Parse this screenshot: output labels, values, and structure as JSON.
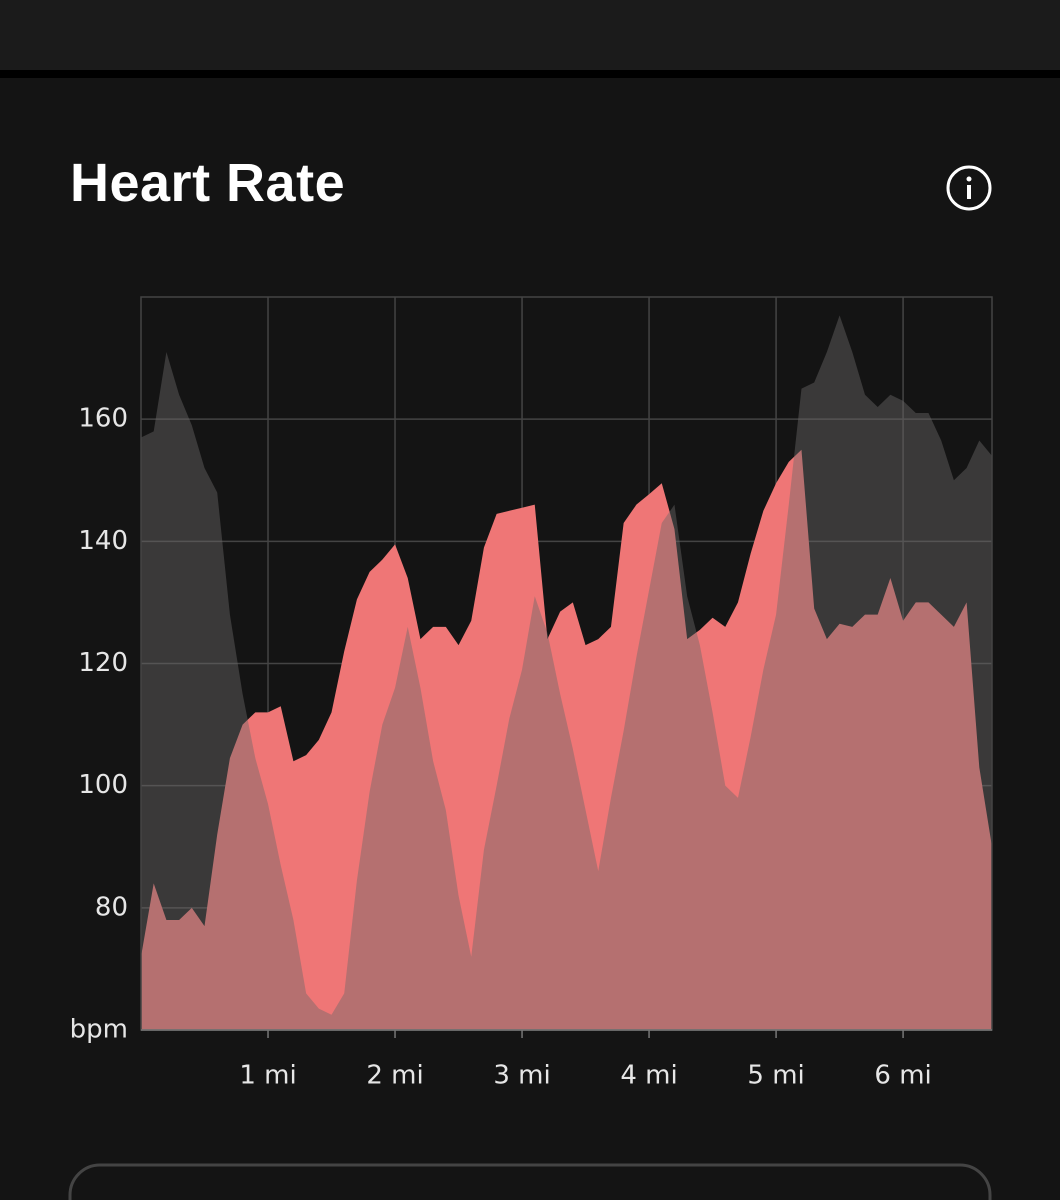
{
  "header": {
    "title": "Heart Rate"
  },
  "chart_data": {
    "type": "area",
    "x": [
      0,
      0.1,
      0.2,
      0.3,
      0.4,
      0.5,
      0.6,
      0.7,
      0.8,
      0.9,
      1.0,
      1.1,
      1.2,
      1.3,
      1.4,
      1.5,
      1.6,
      1.7,
      1.8,
      1.9,
      2.0,
      2.1,
      2.2,
      2.3,
      2.4,
      2.5,
      2.6,
      2.7,
      2.8,
      2.9,
      3.0,
      3.1,
      3.2,
      3.3,
      3.4,
      3.5,
      3.6,
      3.7,
      3.8,
      3.9,
      4.0,
      4.1,
      4.2,
      4.3,
      4.4,
      4.5,
      4.6,
      4.7,
      4.8,
      4.9,
      5.0,
      5.1,
      5.2,
      5.3,
      5.4,
      5.5,
      5.6,
      5.7,
      5.8,
      5.9,
      6.0,
      6.1,
      6.2,
      6.3,
      6.4,
      6.5,
      6.6,
      6.7
    ],
    "series": [
      {
        "color": "#ef7676",
        "values": [
          72,
          84,
          78,
          78,
          80,
          77,
          92,
          104.5,
          110,
          112,
          112,
          113,
          104,
          105,
          107.5,
          112,
          122,
          130.5,
          135,
          137,
          139.5,
          134,
          124,
          126,
          126,
          123,
          127,
          139,
          144.5,
          145,
          145.5,
          146,
          124,
          128.5,
          130,
          123,
          124,
          126,
          143,
          146,
          147.7,
          149.5,
          142,
          124,
          125.5,
          127.5,
          126,
          130,
          138,
          145,
          149.5,
          153,
          155,
          129,
          124,
          126.5,
          126,
          128,
          128,
          134,
          127,
          130,
          130,
          128,
          126,
          130,
          103,
          90
        ]
      },
      {
        "color": "#6b6868",
        "values": [
          157,
          158,
          171,
          164,
          159,
          152,
          148,
          128,
          115,
          104.5,
          97,
          87,
          78,
          66,
          63.5,
          62.5,
          66,
          84.5,
          99,
          110,
          116,
          126,
          116,
          104,
          96,
          82,
          72,
          89.5,
          100,
          111,
          119,
          131,
          125,
          115,
          106,
          96,
          86,
          98,
          109,
          121,
          132,
          143,
          146,
          131,
          123,
          112,
          100,
          98,
          108,
          119,
          128,
          146,
          165,
          166,
          171,
          177,
          171,
          164,
          162,
          164,
          163,
          161,
          161,
          156.5,
          150,
          152,
          156.5,
          154
        ]
      }
    ],
    "xlim": [
      0,
      6.7
    ],
    "xticks": [
      {
        "value": 1,
        "label": "1 mi"
      },
      {
        "value": 2,
        "label": "2 mi"
      },
      {
        "value": 3,
        "label": "3 mi"
      },
      {
        "value": 4,
        "label": "4 mi"
      },
      {
        "value": 5,
        "label": "5 mi"
      },
      {
        "value": 6,
        "label": "6 mi"
      }
    ],
    "ylim": [
      60,
      180
    ],
    "yticks": [
      {
        "value": 60,
        "label": "bpm"
      },
      80,
      100,
      120,
      140,
      160
    ],
    "grid": true
  }
}
